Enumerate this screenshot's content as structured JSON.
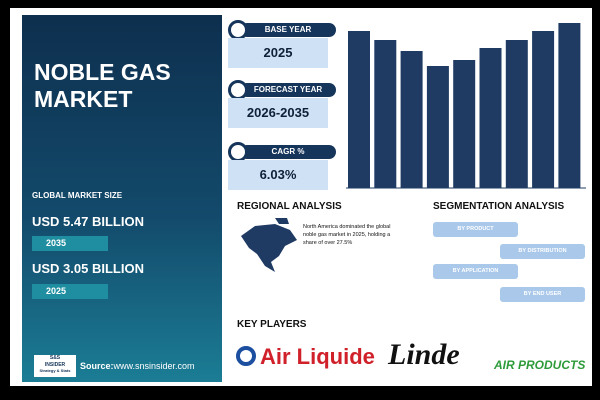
{
  "left_panel": {
    "title": "NOBLE GAS MARKET",
    "market_size_label": "GLOBAL MARKET SIZE",
    "figures": [
      {
        "amount": "USD 5.47 BILLION",
        "year": "2035"
      },
      {
        "amount": "USD 3.05 BILLION",
        "year": "2025"
      }
    ],
    "logo": {
      "line1": "S&S",
      "line2": "INSIDER",
      "line3": "Strategy & Stats"
    },
    "source_label": "Source:",
    "source_url": "www.snsinsider.com"
  },
  "cards": [
    {
      "label": "BASE YEAR",
      "value": "2025"
    },
    {
      "label": "FORECAST YEAR",
      "value": "2026-2035"
    },
    {
      "label": "CAGR %",
      "value": "6.03%"
    }
  ],
  "chart_data": {
    "type": "bar",
    "values": [
      157,
      148,
      137,
      122,
      128,
      140,
      148,
      157,
      165
    ],
    "color": "#1f3b63"
  },
  "regional": {
    "title": "REGIONAL ANALYSIS",
    "text": "North America dominated the global noble gas market in 2025, holding a share of over 27.5%"
  },
  "segmentation": {
    "title": "SEGMENTATION ANALYSIS",
    "items": [
      "BY PRODUCT",
      "BY DISTRIBUTION",
      "BY APPLICATION",
      "BY END USER"
    ]
  },
  "key_players": {
    "title": "KEY PLAYERS",
    "companies": [
      "Air Liquide",
      "Linde",
      "AIR PRODUCTS"
    ]
  }
}
